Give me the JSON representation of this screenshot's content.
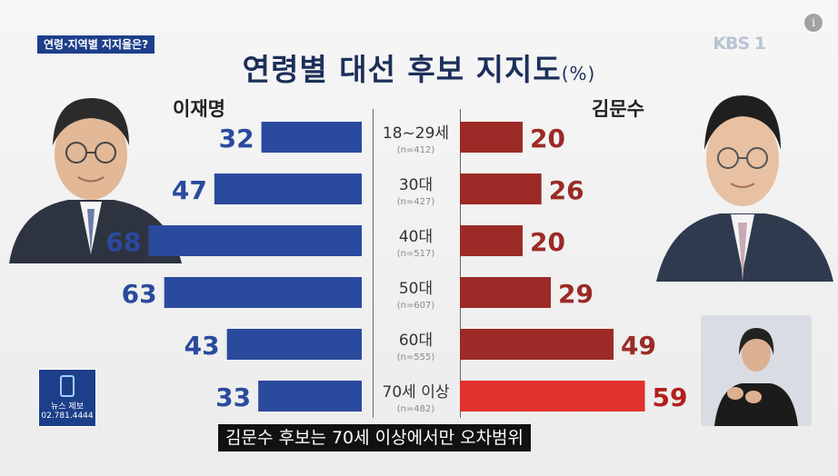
{
  "topic_tag": "연령·지역별 지지율은?",
  "title": "연령별 대선 후보 지지도",
  "title_unit": "(%)",
  "broadcaster": "KBS 1",
  "info_glyph": "i",
  "news_tip": {
    "label": "뉴스 제보",
    "phone": "02.781.4444"
  },
  "caption": "김문수 후보는 70세 이상에서만 오차범위",
  "colors": {
    "blue": "#2a4a9e",
    "red": "#9c2a26",
    "bright_red": "#e1312d",
    "navy_text": "#1c2f5a"
  },
  "chart_data": {
    "type": "bar",
    "orientation": "diverging-horizontal",
    "title": "연령별 대선 후보 지지도",
    "unit": "%",
    "categories": [
      "18~29세",
      "30대",
      "40대",
      "50대",
      "60대",
      "70세 이상"
    ],
    "sample_sizes": [
      "(n=412)",
      "(n=427)",
      "(n=517)",
      "(n=607)",
      "(n=555)",
      "(n=482)"
    ],
    "series": [
      {
        "name": "이재명",
        "values": [
          32,
          47,
          68,
          63,
          43,
          33
        ],
        "color": "#2a4a9e"
      },
      {
        "name": "김문수",
        "values": [
          20,
          26,
          20,
          29,
          49,
          59
        ],
        "color": "#9c2a26",
        "highlight_color": "#e1312d",
        "highlight_index": 5
      }
    ]
  }
}
